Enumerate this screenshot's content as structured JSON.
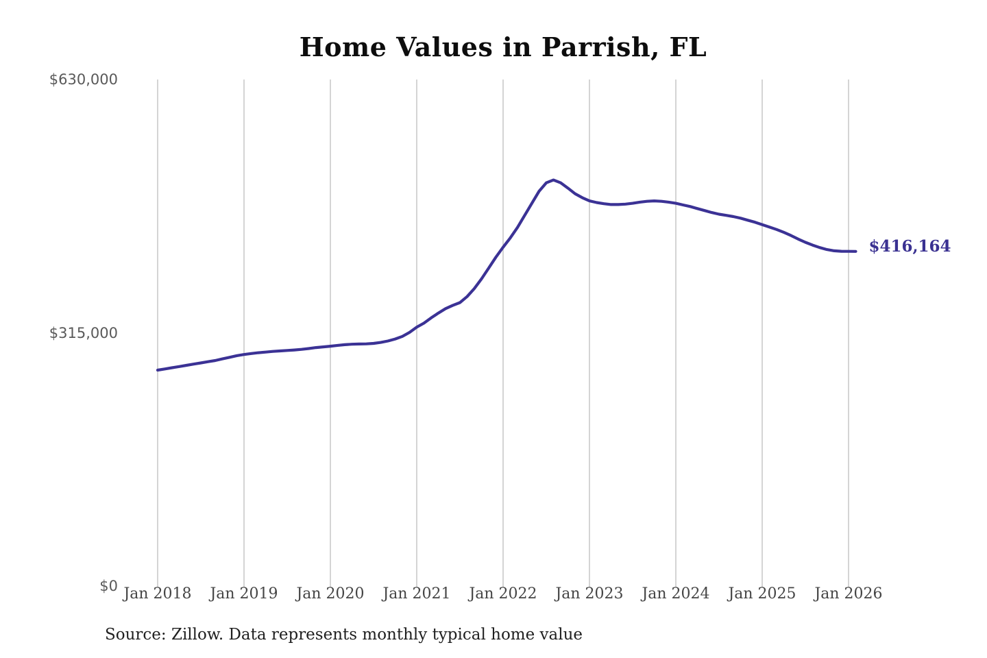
{
  "chart_data": {
    "type": "line",
    "title": "Home Values in Parrish, FL",
    "xlabel": "",
    "ylabel": "",
    "ylim": [
      0,
      630000
    ],
    "grid": "vertical-only",
    "y_ticks": [
      {
        "value": 0,
        "label": "$0"
      },
      {
        "value": 315000,
        "label": "$315,000"
      },
      {
        "value": 630000,
        "label": "$630,000"
      }
    ],
    "x_ticks": [
      "Jan 2018",
      "Jan 2019",
      "Jan 2020",
      "Jan 2021",
      "Jan 2022",
      "Jan 2023",
      "Jan 2024",
      "Jan 2025",
      "Jan 2026"
    ],
    "annotation": {
      "label": "$416,164",
      "color": "#3a3191"
    },
    "source_note": "Source: Zillow. Data represents monthly typical home value",
    "series": [
      {
        "name": "Typical home value",
        "color": "#3b3295",
        "start": "Jan 2018",
        "frequency": "monthly",
        "values": [
          268500,
          270000,
          271500,
          273000,
          274500,
          276000,
          277500,
          279000,
          280500,
          282500,
          284500,
          286500,
          288000,
          289200,
          290200,
          291000,
          291800,
          292400,
          293000,
          293600,
          294400,
          295400,
          296600,
          297400,
          298300,
          299300,
          300200,
          300800,
          301000,
          301200,
          301800,
          303000,
          304800,
          307200,
          310500,
          315500,
          322000,
          327000,
          333500,
          339500,
          345000,
          349000,
          352500,
          360000,
          370000,
          382000,
          395500,
          409000,
          421400,
          433000,
          446000,
          461000,
          476000,
          491000,
          501500,
          505000,
          501500,
          495000,
          488000,
          483000,
          479000,
          477000,
          475500,
          474500,
          474500,
          475000,
          476000,
          477500,
          478500,
          479000,
          478500,
          477500,
          476000,
          474000,
          472000,
          469500,
          467000,
          464500,
          462500,
          461000,
          459500,
          457500,
          455000,
          452500,
          449500,
          446500,
          443500,
          440000,
          436000,
          431500,
          427500,
          424000,
          421000,
          418500,
          417000,
          416400,
          416250,
          416164
        ]
      }
    ]
  },
  "colors": {
    "line": "#3b3295",
    "grid": "#c6c6c6",
    "title": "#0d0d0d",
    "x_axis_label": "#454545",
    "y_axis_label": "#595959",
    "annotation": "#3a3191",
    "source": "#1f1f1f",
    "background": "#ffffff"
  }
}
